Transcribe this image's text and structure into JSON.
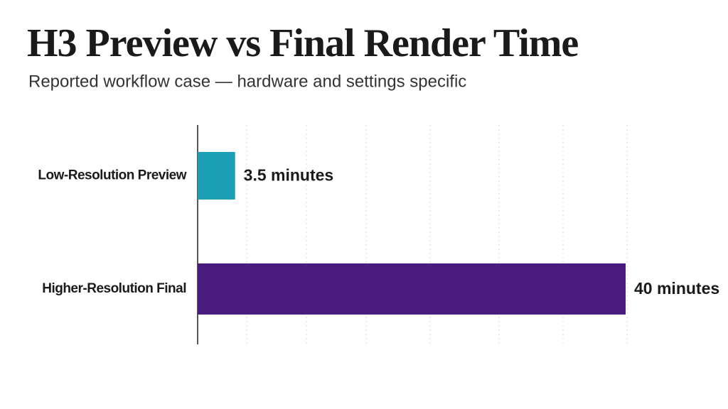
{
  "chart_data": {
    "type": "bar",
    "orientation": "horizontal",
    "title": "H3 Preview vs Final Render Time",
    "subtitle": "Reported workflow case — hardware and settings specific",
    "categories": [
      "Low-Resolution Preview",
      "Higher-Resolution Final"
    ],
    "values": [
      3.5,
      40
    ],
    "value_labels": [
      "3.5 minutes",
      "40 minutes"
    ],
    "colors": [
      "#1a9fb5",
      "#4b1c80"
    ],
    "xlim": [
      0,
      40
    ]
  }
}
